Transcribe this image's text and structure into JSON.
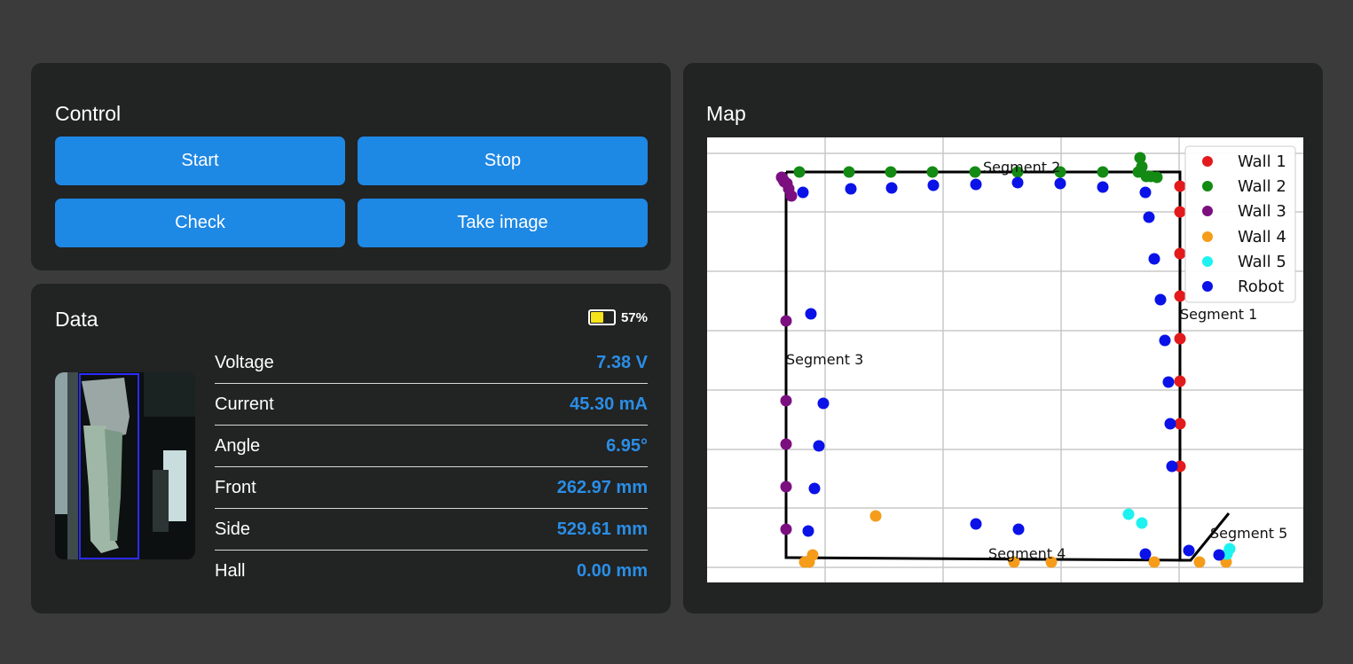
{
  "control": {
    "title": "Control",
    "buttons": {
      "start": "Start",
      "stop": "Stop",
      "check": "Check",
      "take_image": "Take image"
    }
  },
  "data_panel": {
    "title": "Data",
    "battery": {
      "level": 0.57,
      "label": "57%",
      "color": "#f5e31b"
    },
    "rows": [
      {
        "label": "Voltage",
        "value": "7.38 V"
      },
      {
        "label": "Current",
        "value": "45.30 mA"
      },
      {
        "label": "Angle",
        "value": "6.95°"
      },
      {
        "label": "Front",
        "value": "262.97 mm"
      },
      {
        "label": "Side",
        "value": "529.61 mm"
      },
      {
        "label": "Hall",
        "value": "0.00 mm"
      }
    ]
  },
  "map": {
    "title": "Map",
    "chart_data": {
      "type": "scatter",
      "segment_labels": [
        "Segment 1",
        "Segment 2",
        "Segment 3",
        "Segment 4",
        "Segment 5"
      ],
      "legend": [
        {
          "name": "Wall 1",
          "color": "#e31a1c"
        },
        {
          "name": "Wall 2",
          "color": "#138a13"
        },
        {
          "name": "Wall 3",
          "color": "#7b0f80"
        },
        {
          "name": "Wall 4",
          "color": "#f59c1a"
        },
        {
          "name": "Wall 5",
          "color": "#1ef2f0"
        },
        {
          "name": "Robot",
          "color": "#0a12e8"
        }
      ],
      "grid": true,
      "legend_position": "top-right"
    }
  },
  "colors": {
    "page_bg": "#3b3b3b",
    "card_bg": "#222323",
    "accent": "#1e88e5",
    "value_text": "#2a8ee6"
  }
}
